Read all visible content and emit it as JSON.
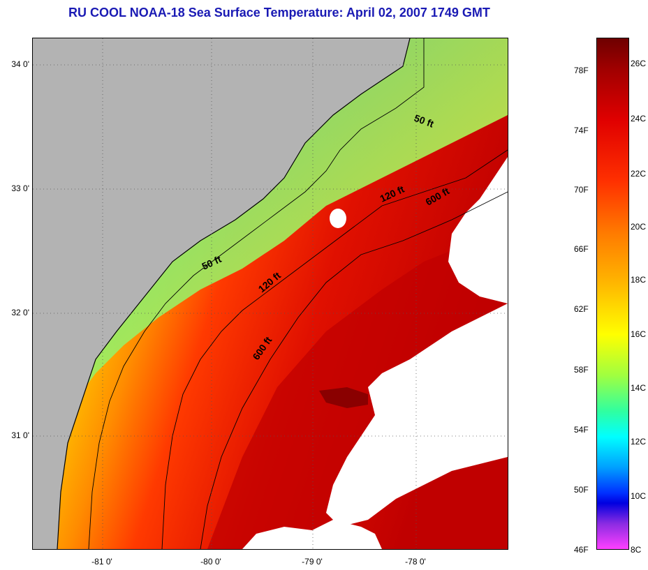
{
  "title": "RU COOL  NOAA-18  Sea Surface Temperature:  April 02, 2007 1749 GMT",
  "map": {
    "y_labels": [
      "34 0'",
      "33 0'",
      "32 0'",
      "31 0'"
    ],
    "x_labels": [
      "-81 0'",
      "-80 0'",
      "-79 0'",
      "-78 0'"
    ],
    "contour_labels": [
      "50 ft",
      "50 ft",
      "120 ft",
      "120 ft",
      "600 ft",
      "600 ft"
    ]
  },
  "colorbar": {
    "fahrenheit": [
      "78F",
      "74F",
      "70F",
      "66F",
      "62F",
      "58F",
      "54F",
      "50F",
      "46F"
    ],
    "celsius": [
      "26C",
      "24C",
      "22C",
      "20C",
      "18C",
      "16C",
      "14C",
      "12C",
      "10C",
      "8C"
    ]
  }
}
